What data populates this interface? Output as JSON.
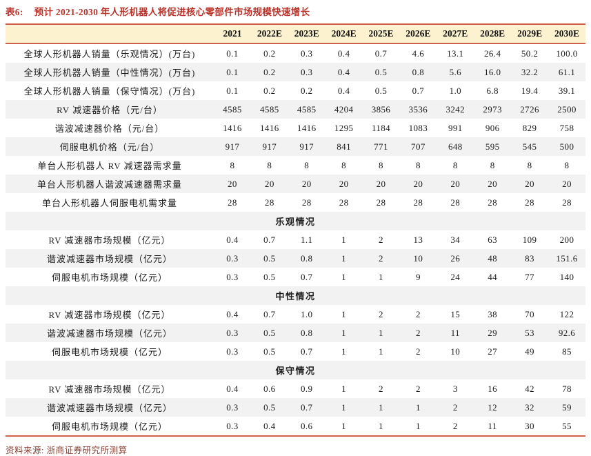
{
  "title": {
    "prefix": "表6:",
    "text": "预计 2021-2030 年人形机器人将促进核心零部件市场规模快速增长"
  },
  "columns": [
    "2021",
    "2022E",
    "2023E",
    "2024E",
    "2025E",
    "2026E",
    "2027E",
    "2028E",
    "2029E",
    "2030E"
  ],
  "rows": [
    {
      "type": "data",
      "label": "全球人形机器人销量（乐观情况）(万台)",
      "values": [
        "0.1",
        "0.2",
        "0.3",
        "0.4",
        "0.7",
        "4.6",
        "13.1",
        "26.4",
        "50.2",
        "100.0"
      ]
    },
    {
      "type": "data",
      "label": "全球人形机器人销量（中性情况）(万台)",
      "values": [
        "0.1",
        "0.2",
        "0.3",
        "0.4",
        "0.5",
        "0.8",
        "5.6",
        "16.0",
        "32.2",
        "61.1"
      ]
    },
    {
      "type": "data",
      "label": "全球人形机器人销量（保守情况）(万台)",
      "values": [
        "0.1",
        "0.2",
        "0.2",
        "0.4",
        "0.5",
        "0.7",
        "1.0",
        "6.8",
        "19.4",
        "39.1"
      ]
    },
    {
      "type": "data",
      "label": "RV 减速器价格（元/台）",
      "values": [
        "4585",
        "4585",
        "4585",
        "4204",
        "3856",
        "3536",
        "3242",
        "2973",
        "2726",
        "2500"
      ]
    },
    {
      "type": "data",
      "label": "谐波减速器价格（元/台）",
      "values": [
        "1416",
        "1416",
        "1416",
        "1295",
        "1184",
        "1083",
        "991",
        "906",
        "829",
        "758"
      ]
    },
    {
      "type": "data",
      "label": "伺服电机价格（元/台）",
      "values": [
        "917",
        "917",
        "917",
        "841",
        "771",
        "707",
        "648",
        "595",
        "545",
        "500"
      ]
    },
    {
      "type": "data",
      "label": "单台人形机器人 RV 减速器需求量",
      "values": [
        "8",
        "8",
        "8",
        "8",
        "8",
        "8",
        "8",
        "8",
        "8",
        "8"
      ]
    },
    {
      "type": "data",
      "label": "单台人形机器人谐波减速器需求量",
      "values": [
        "20",
        "20",
        "20",
        "20",
        "20",
        "20",
        "20",
        "20",
        "20",
        "20"
      ]
    },
    {
      "type": "data",
      "label": "单台人形机器人伺服电机需求量",
      "values": [
        "28",
        "28",
        "28",
        "28",
        "28",
        "28",
        "28",
        "28",
        "28",
        "28"
      ]
    },
    {
      "type": "section",
      "label": "乐观情况"
    },
    {
      "type": "data",
      "label": "RV 减速器市场规模（亿元）",
      "values": [
        "0.4",
        "0.7",
        "1.1",
        "1",
        "2",
        "13",
        "34",
        "63",
        "109",
        "200"
      ]
    },
    {
      "type": "data",
      "label": "谐波减速器市场规模（亿元）",
      "values": [
        "0.3",
        "0.5",
        "0.8",
        "1",
        "2",
        "10",
        "26",
        "48",
        "83",
        "151.6"
      ]
    },
    {
      "type": "data",
      "label": "伺服电机市场规模（亿元）",
      "values": [
        "0.3",
        "0.5",
        "0.7",
        "1",
        "1",
        "9",
        "24",
        "44",
        "77",
        "140"
      ]
    },
    {
      "type": "section",
      "label": "中性情况"
    },
    {
      "type": "data",
      "label": "RV 减速器市场规模（亿元）",
      "values": [
        "0.4",
        "0.7",
        "1.0",
        "1",
        "2",
        "2",
        "15",
        "38",
        "70",
        "122"
      ]
    },
    {
      "type": "data",
      "label": "谐波减速器市场规模（亿元）",
      "values": [
        "0.3",
        "0.5",
        "0.8",
        "1",
        "1",
        "2",
        "11",
        "29",
        "53",
        "92.6"
      ]
    },
    {
      "type": "data",
      "label": "伺服电机市场规模（亿元）",
      "values": [
        "0.3",
        "0.5",
        "0.7",
        "1",
        "1",
        "2",
        "10",
        "27",
        "49",
        "85"
      ]
    },
    {
      "type": "section",
      "label": "保守情况"
    },
    {
      "type": "data",
      "label": "RV 减速器市场规模（亿元）",
      "values": [
        "0.4",
        "0.6",
        "0.9",
        "1",
        "2",
        "2",
        "3",
        "16",
        "42",
        "78"
      ]
    },
    {
      "type": "data",
      "label": "谐波减速器市场规模（亿元）",
      "values": [
        "0.3",
        "0.5",
        "0.7",
        "1",
        "1",
        "1",
        "2",
        "12",
        "32",
        "59"
      ]
    },
    {
      "type": "data",
      "label": "伺服电机市场规模（亿元）",
      "values": [
        "0.3",
        "0.4",
        "0.6",
        "1",
        "1",
        "1",
        "2",
        "11",
        "30",
        "55"
      ]
    }
  ],
  "footer": {
    "source": "资料来源: 浙商证券研究所测算"
  },
  "colors": {
    "title_red": "#b8342a",
    "rule_red": "#cf5f4d",
    "header_bg": "#fcf2d0",
    "stripe_gray": "#f2f2f2",
    "source_brown": "#8a4336"
  }
}
